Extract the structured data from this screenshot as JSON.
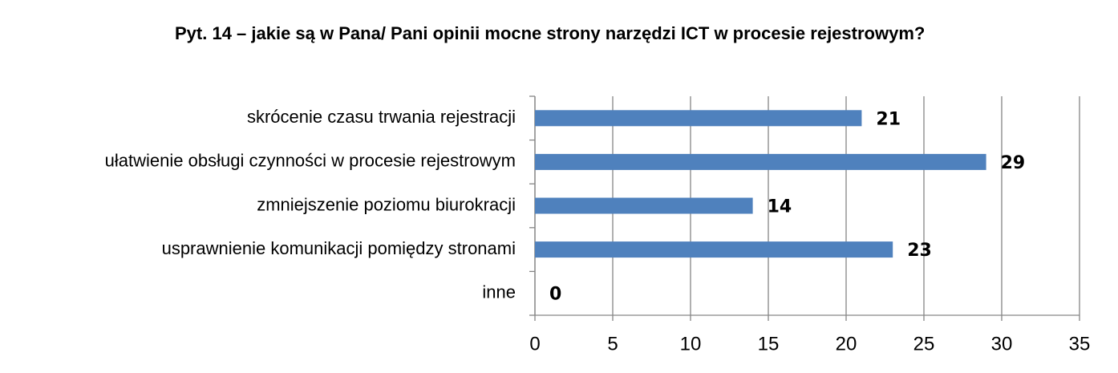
{
  "chart_data": {
    "type": "bar",
    "orientation": "horizontal",
    "title": "Pyt. 14 – jakie są w Pana/ Pani opinii mocne strony narzędzi ICT w procesie rejestrowym?",
    "categories": [
      "skrócenie czasu trwania rejestracji",
      "ułatwienie obsługi czynności w procesie rejestrowym",
      "zmniejszenie poziomu biurokracji",
      "usprawnienie komunikacji pomiędzy stronami",
      "inne"
    ],
    "values": [
      21,
      29,
      14,
      23,
      0
    ],
    "color": "#4f81bd",
    "xlim": [
      0,
      35
    ],
    "xticks": [
      0,
      5,
      10,
      15,
      20,
      25,
      30,
      35
    ],
    "grid": true
  }
}
